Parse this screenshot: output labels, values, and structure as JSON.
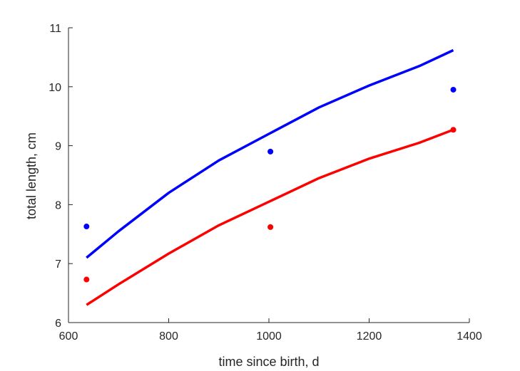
{
  "chart_data": {
    "type": "line",
    "xlabel": "time since birth, d",
    "ylabel": "total length, cm",
    "xlim": [
      600,
      1400
    ],
    "ylim": [
      6,
      11
    ],
    "xticks": [
      "600",
      "800",
      "1000",
      "1200",
      "1400"
    ],
    "yticks": [
      "6",
      "7",
      "8",
      "9",
      "10",
      "11"
    ],
    "grid": false,
    "series": [
      {
        "kind": "observations",
        "color": "#0000ff",
        "x": [
          636,
          1003,
          1368
        ],
        "y": [
          7.63,
          8.9,
          9.95
        ]
      },
      {
        "kind": "observations",
        "color": "#ff0000",
        "x": [
          636,
          1003,
          1368
        ],
        "y": [
          6.73,
          7.62,
          9.27
        ]
      },
      {
        "kind": "fitted-curve",
        "color": "#0000ff",
        "x": [
          636,
          700,
          800,
          900,
          1000,
          1100,
          1200,
          1300,
          1368
        ],
        "y": [
          7.1,
          7.55,
          8.2,
          8.75,
          9.2,
          9.65,
          10.02,
          10.35,
          10.62
        ]
      },
      {
        "kind": "fitted-curve",
        "color": "#ff0000",
        "x": [
          636,
          700,
          800,
          900,
          1000,
          1100,
          1200,
          1300,
          1368
        ],
        "y": [
          6.3,
          6.65,
          7.17,
          7.65,
          8.05,
          8.45,
          8.78,
          9.05,
          9.27
        ]
      }
    ]
  }
}
